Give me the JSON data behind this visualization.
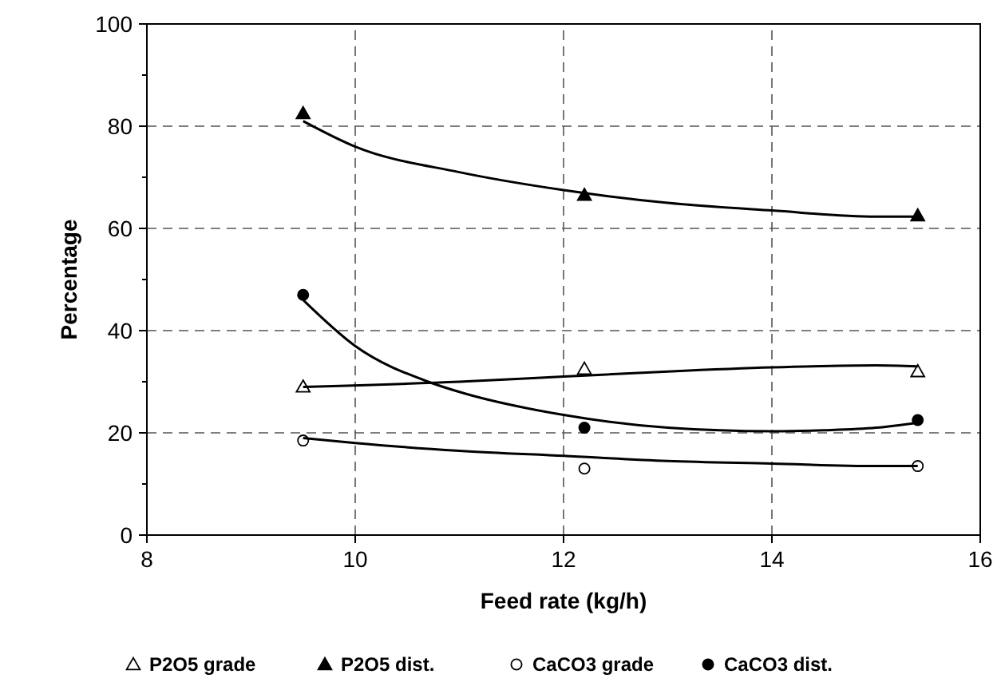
{
  "chart_data": {
    "type": "scatter",
    "xlabel": "Feed rate (kg/h)",
    "ylabel": "Percentage",
    "xlim": [
      8,
      16
    ],
    "xticks": [
      8,
      10,
      12,
      14,
      16
    ],
    "ylim": [
      0,
      100
    ],
    "yticks": [
      0,
      {
        "value": 10,
        "label": null
      },
      20,
      {
        "value": 30,
        "label": null
      },
      40,
      {
        "value": 50,
        "label": null
      },
      60,
      {
        "value": 70,
        "label": null
      },
      80,
      {
        "value": 90,
        "label": null
      },
      100
    ],
    "grid": true,
    "legend": "bottom",
    "series": [
      {
        "name": "P2O5 grade",
        "marker": "triangle",
        "color": "#ffffff",
        "x": [
          9.5,
          12.2,
          15.4
        ],
        "values": [
          29,
          32.5,
          32
        ]
      },
      {
        "name": "P2O5 dist.",
        "marker": "triangle",
        "color": "#000000",
        "x": [
          9.5,
          12.2,
          15.4
        ],
        "values": [
          82.5,
          66.5,
          62.5
        ]
      },
      {
        "name": "CaCO3 grade",
        "marker": "circle",
        "color": "#ffffff",
        "x": [
          9.5,
          12.2,
          15.4
        ],
        "values": [
          18.5,
          13,
          13.5
        ]
      },
      {
        "name": "CaCO3 dist.",
        "marker": "circle",
        "color": "#000000",
        "x": [
          9.5,
          12.2,
          15.4
        ],
        "values": [
          47,
          21,
          22.5
        ]
      },
      {
        "type": "line",
        "marker": "none",
        "color": "#000000",
        "x": [
          9.5,
          10,
          11,
          12,
          13,
          14,
          15,
          15.4
        ],
        "values": [
          81,
          76,
          71,
          67.5,
          65,
          63.5,
          62.3,
          62.3
        ]
      },
      {
        "type": "line",
        "marker": "none",
        "color": "#000000",
        "x": [
          9.5,
          11,
          12,
          13,
          14,
          15,
          15.4
        ],
        "values": [
          29,
          30,
          31,
          32,
          32.8,
          33.2,
          33
        ]
      },
      {
        "type": "line",
        "marker": "none",
        "color": "#000000",
        "x": [
          9.5,
          10,
          10.7,
          11,
          12,
          13,
          14,
          14.5,
          15,
          15.4
        ],
        "values": [
          46,
          37,
          30,
          28,
          23.5,
          21,
          20.3,
          20.5,
          21,
          22
        ]
      },
      {
        "type": "line",
        "marker": "none",
        "color": "#000000",
        "x": [
          9.5,
          10,
          11,
          12,
          13,
          14,
          15,
          15.4
        ],
        "values": [
          19,
          18,
          16.5,
          15.5,
          14.5,
          14,
          13.5,
          13.5
        ]
      }
    ]
  }
}
